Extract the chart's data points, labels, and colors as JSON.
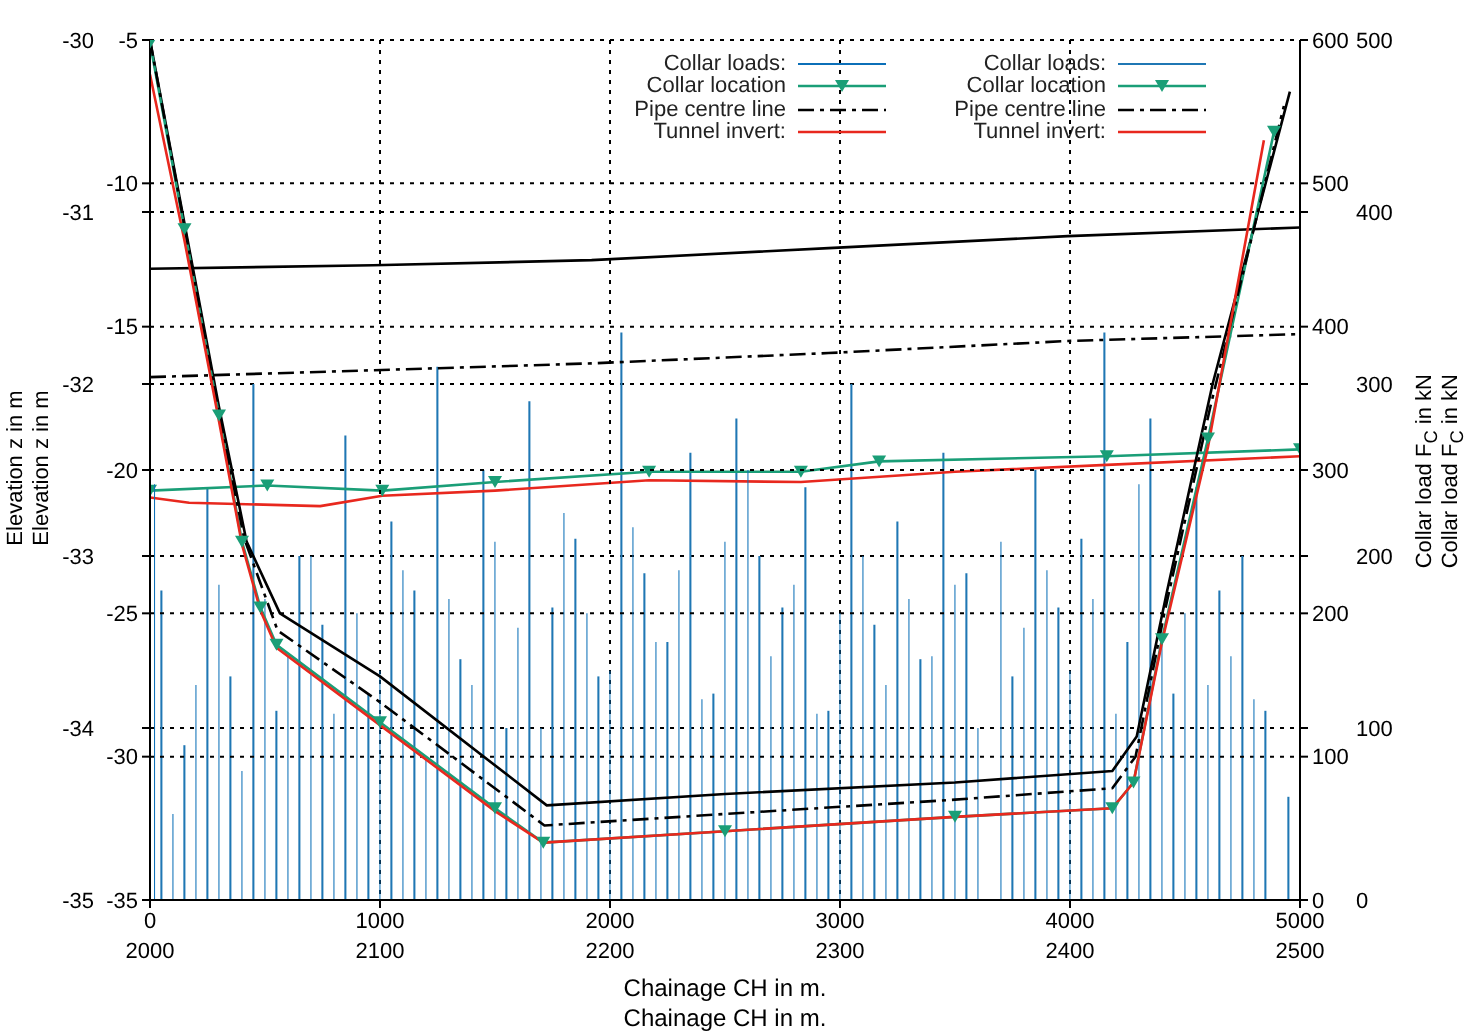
{
  "chart_data": [
    {
      "type": "line",
      "xlabel": "Chainage CH in m.",
      "ylabel": "Elevation z in m",
      "y2label": "Collar load F$_{C}$ in kN",
      "xlim": [
        2000,
        2500
      ],
      "xticks": [
        2000,
        2100,
        2200,
        2300,
        2400,
        2500
      ],
      "ylim": [
        -35,
        -30
      ],
      "yticks": [
        -35,
        -34,
        -33,
        -32,
        -31,
        -30
      ],
      "y2lim": [
        0,
        500
      ],
      "y2ticks": [
        0,
        100,
        200,
        300,
        400,
        500
      ],
      "grid": true,
      "legend": "top right",
      "series": [
        {
          "name": "Collar loads:",
          "type": "bar",
          "axis": "y2",
          "color": "#1f77b4",
          "x": [
            2005,
            2015,
            2025,
            2035,
            2045,
            2055,
            2065,
            2075,
            2085,
            2095,
            2105,
            2115,
            2125,
            2135,
            2145,
            2155,
            2165,
            2175,
            2185,
            2195,
            2205,
            2215,
            2225,
            2235,
            2245,
            2255,
            2265,
            2275,
            2285,
            2295,
            2305,
            2315,
            2325,
            2335,
            2345,
            2355,
            2375,
            2385,
            2395,
            2405,
            2415,
            2425,
            2435,
            2445,
            2455,
            2465,
            2475,
            2485,
            2495
          ],
          "values": [
            180,
            90,
            240,
            130,
            300,
            110,
            200,
            160,
            270,
            120,
            220,
            180,
            310,
            140,
            250,
            100,
            290,
            170,
            210,
            130,
            330,
            190,
            150,
            260,
            120,
            280,
            200,
            170,
            240,
            110,
            300,
            160,
            220,
            140,
            260,
            190,
            130,
            250,
            170,
            210,
            330,
            150,
            280,
            120,
            240,
            180,
            200,
            110,
            60
          ]
        },
        {
          "color": "#000000",
          "line_style": "solid",
          "marker": "none",
          "x": [
            2000,
            2097,
            2192,
            2295,
            2399,
            2500
          ],
          "values": [
            -31.33,
            -31.31,
            -31.28,
            -31.21,
            -31.14,
            -31.09
          ]
        },
        {
          "name": "Collar location",
          "color": "#1a9e77",
          "line_style": "solid",
          "marker": "triangle",
          "x": [
            2000,
            2051,
            2101,
            2150,
            2217,
            2283,
            2317,
            2416,
            2500
          ],
          "values": [
            -32.62,
            -32.59,
            -32.62,
            -32.57,
            -32.51,
            -32.51,
            -32.45,
            -32.42,
            -32.38
          ]
        },
        {
          "name": "Pipe centre line",
          "color": "#000000",
          "line_style": "dashed",
          "marker": "none",
          "x": [
            2000,
            2097,
            2192,
            2295,
            2399,
            2500
          ],
          "values": [
            -31.96,
            -31.92,
            -31.88,
            -31.82,
            -31.75,
            -31.71
          ]
        },
        {
          "name": "Tunnel invert:",
          "color": "#e8281e",
          "line_style": "solid",
          "marker": "none",
          "x": [
            2000,
            2017,
            2074,
            2101,
            2150,
            2217,
            2283,
            2350,
            2416,
            2500
          ],
          "values": [
            -32.66,
            -32.69,
            -32.71,
            -32.65,
            -32.62,
            -32.56,
            -32.57,
            -32.51,
            -32.47,
            -32.42
          ]
        }
      ]
    },
    {
      "type": "line",
      "xlabel": "Chainage CH in m.",
      "ylabel": "Elevation z in m",
      "y2label": "Collar load F$_{C}$ in kN",
      "xlim": [
        0,
        5000
      ],
      "xticks": [
        0,
        1000,
        2000,
        3000,
        4000,
        5000
      ],
      "ylim": [
        -35,
        -5
      ],
      "yticks": [
        -35,
        -30,
        -25,
        -20,
        -15,
        -10,
        -5
      ],
      "y2lim": [
        0,
        600
      ],
      "y2ticks": [
        0,
        100,
        200,
        300,
        400,
        500,
        600
      ],
      "grid": true,
      "legend": "top right",
      "series": [
        {
          "name": "Collar loads:",
          "type": "bar",
          "axis": "y2",
          "color": "#0b6fb8",
          "x": [
            20,
            100,
            200,
            300,
            400,
            500,
            600,
            700,
            800,
            900,
            1000,
            1100,
            1200,
            1300,
            1400,
            1500,
            1600,
            1700,
            1800,
            1900,
            2000,
            2100,
            2200,
            2300,
            2400,
            2500,
            2600,
            2700,
            2800,
            2900,
            3000,
            3100,
            3200,
            3300,
            3400,
            3500,
            3600,
            3700,
            3800,
            3900,
            4000,
            4100,
            4200,
            4300,
            4400,
            4500,
            4600,
            4700,
            4800
          ],
          "values": [
            290,
            60,
            150,
            220,
            90,
            210,
            170,
            240,
            130,
            200,
            160,
            230,
            100,
            210,
            150,
            250,
            190,
            120,
            270,
            200,
            160,
            260,
            180,
            230,
            140,
            250,
            300,
            170,
            220,
            130,
            200,
            240,
            150,
            210,
            170,
            220,
            120,
            250,
            190,
            230,
            160,
            210,
            130,
            290,
            180,
            200,
            150,
            170,
            140
          ]
        },
        {
          "color": "#000000",
          "line_style": "solid",
          "marker": "none",
          "x": [
            0,
            150,
            300,
            420,
            565,
            1000,
            1725,
            2500,
            3500,
            4184,
            4290,
            4420,
            4620,
            4956
          ],
          "values": [
            -5,
            -11.4,
            -17.8,
            -22.5,
            -25,
            -27.2,
            -31.7,
            -31.3,
            -30.9,
            -30.5,
            -29.3,
            -24.3,
            -17,
            -6.8
          ]
        },
        {
          "name": "Collar location",
          "color": "#1a9e77",
          "line_style": "solid",
          "marker": "triangle",
          "x": [
            0,
            150,
            300,
            400,
            480,
            550,
            1000,
            1500,
            1710,
            2500,
            3500,
            4184,
            4276,
            4400,
            4600,
            4887
          ],
          "values": [
            -5.1,
            -11.6,
            -18.1,
            -22.5,
            -24.8,
            -26.1,
            -28.8,
            -31.8,
            -33,
            -32.6,
            -32.1,
            -31.8,
            -30.9,
            -25.9,
            -18.9,
            -8.2
          ]
        },
        {
          "name": "Pipe centre line",
          "color": "#000000",
          "line_style": "dashed",
          "marker": "none",
          "x": [
            0,
            150,
            300,
            410,
            555,
            1000,
            1715,
            2500,
            3500,
            4184,
            4285,
            4410,
            4610,
            4930
          ],
          "values": [
            -5,
            -11.5,
            -18,
            -22.4,
            -25.6,
            -28.1,
            -32.4,
            -32,
            -31.5,
            -31.1,
            -30,
            -25,
            -17.8,
            -7.3
          ]
        },
        {
          "name": "Tunnel invert:",
          "color": "#e8281e",
          "line_style": "solid",
          "marker": "none",
          "x": [
            0,
            150,
            300,
            400,
            480,
            550,
            1000,
            1500,
            1710,
            2500,
            3500,
            4184,
            4276,
            4400,
            4600,
            4843
          ],
          "values": [
            -6.2,
            -12,
            -18.3,
            -22.6,
            -24.9,
            -26.2,
            -28.9,
            -31.9,
            -33,
            -32.6,
            -32.1,
            -31.8,
            -30.9,
            -26,
            -19.2,
            -8.5
          ]
        }
      ]
    }
  ]
}
